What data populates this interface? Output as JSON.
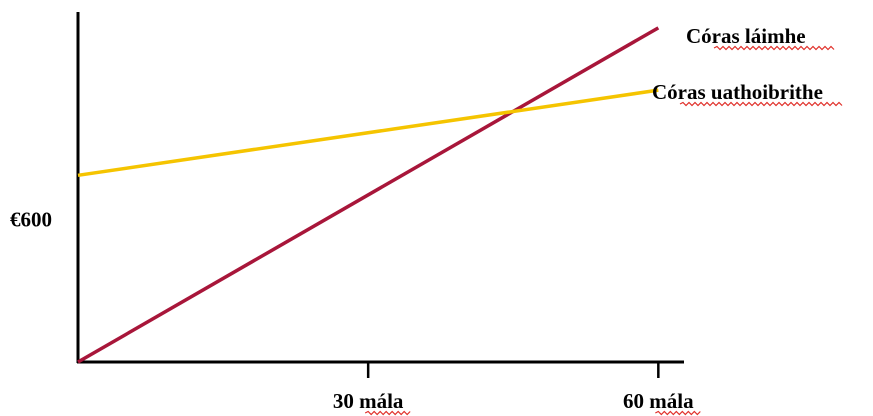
{
  "chart_data": {
    "type": "line",
    "xlabel": "",
    "ylabel": "",
    "x_ticks": [
      {
        "value": 30,
        "label": "30 mála"
      },
      {
        "value": 60,
        "label": "60 mála"
      }
    ],
    "y_ticks": [
      {
        "value": 600,
        "label": "€600"
      }
    ],
    "xlim": [
      0,
      61
    ],
    "ylim": [
      0,
      1480
    ],
    "grid": false,
    "series": [
      {
        "name": "Córas láimhe",
        "color": "#a8163a",
        "points": [
          [
            0,
            0
          ],
          [
            60,
            1405
          ]
        ]
      },
      {
        "name": "Córas uathoibrithe",
        "color": "#f5c400",
        "points": [
          [
            0,
            785
          ],
          [
            60,
            1143
          ]
        ]
      }
    ]
  }
}
